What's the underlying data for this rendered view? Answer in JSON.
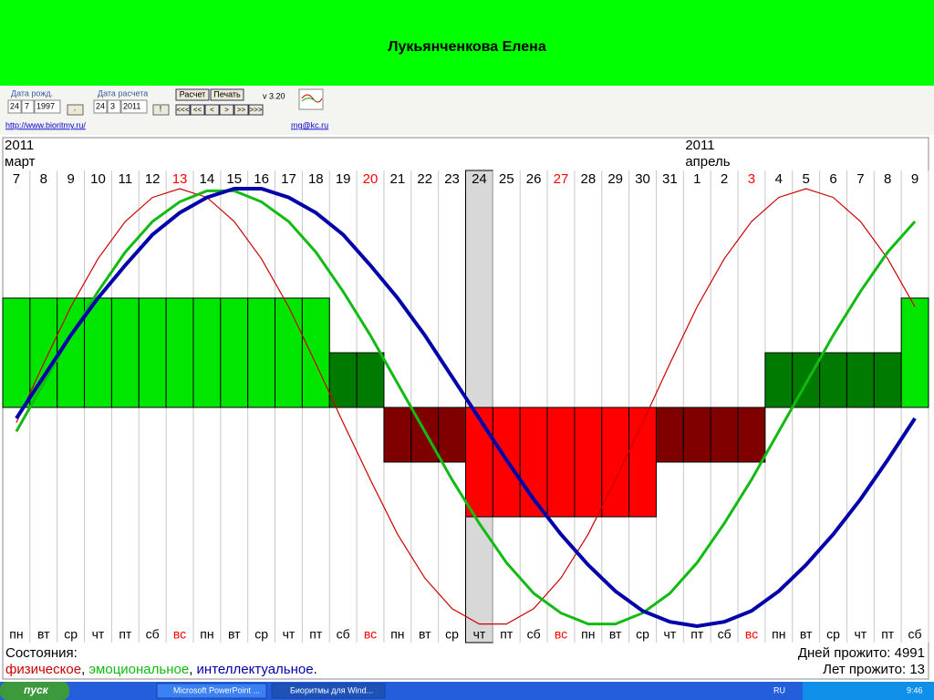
{
  "header": {
    "title": "Лукьянченкова Елена"
  },
  "controls": {
    "birth_label": "Дата рожд.",
    "birth_date": {
      "day": "24",
      "month": "7",
      "year": "1997"
    },
    "birth_button": ".",
    "calc_label": "Дата расчета",
    "calc_date": {
      "day": "24",
      "month": "3",
      "year": "2011"
    },
    "calc_button": "!",
    "buttons": [
      "Расчет",
      "Печать"
    ],
    "version": "v 3.20",
    "nav": [
      "<<<",
      "<<",
      "<",
      ">",
      ">>",
      ">>>"
    ],
    "links": [
      "http://www.bioritmy.ru/",
      "mg@kc.ru"
    ]
  },
  "chart_data": {
    "type": "line",
    "months": [
      {
        "year": "2011",
        "month": "март"
      },
      {
        "year": "2011",
        "month": "апрель"
      }
    ],
    "categories": [
      "7",
      "8",
      "9",
      "10",
      "11",
      "12",
      "13",
      "14",
      "15",
      "16",
      "17",
      "18",
      "19",
      "20",
      "21",
      "22",
      "23",
      "24",
      "25",
      "26",
      "27",
      "28",
      "29",
      "30",
      "31",
      "1",
      "2",
      "3",
      "4",
      "5",
      "6",
      "7",
      "8",
      "9"
    ],
    "weekdays": [
      "пн",
      "вт",
      "ср",
      "чт",
      "пт",
      "сб",
      "вс",
      "пн",
      "вт",
      "ср",
      "чт",
      "пт",
      "сб",
      "вс",
      "пн",
      "вт",
      "ср",
      "чт",
      "пт",
      "сб",
      "вс",
      "пн",
      "вт",
      "ср",
      "чт",
      "пт",
      "сб",
      "вс",
      "пн",
      "вт",
      "ср",
      "чт",
      "пт",
      "сб"
    ],
    "holiday_color": "#ff0000",
    "ylim": [
      -100,
      100
    ],
    "y2lim": [
      -4,
      4
    ],
    "series": [
      {
        "name": "физическое",
        "color": "#cc0000",
        "values": [
          -7,
          20,
          46,
          68,
          85,
          96,
          100,
          96,
          85,
          68,
          46,
          20,
          -7,
          -33,
          -58,
          -78,
          -92,
          -99,
          -99,
          -92,
          -78,
          -58,
          -33,
          -7,
          20,
          46,
          68,
          85,
          96,
          100,
          96,
          85,
          68,
          46
        ]
      },
      {
        "name": "эмоциональное",
        "color": "#11bb11",
        "values": [
          -11,
          11,
          33,
          53,
          71,
          85,
          94,
          99,
          99,
          94,
          85,
          71,
          53,
          33,
          11,
          -11,
          -33,
          -53,
          -71,
          -85,
          -94,
          -99,
          -99,
          -94,
          -85,
          -71,
          -53,
          -33,
          -11,
          11,
          33,
          53,
          71,
          85
        ]
      },
      {
        "name": "интеллектуальное",
        "color": "#0000aa",
        "values": [
          -5,
          14,
          33,
          50,
          65,
          79,
          89,
          96,
          100,
          100,
          96,
          89,
          79,
          65,
          50,
          33,
          14,
          -5,
          -24,
          -42,
          -58,
          -72,
          -84,
          -93,
          -98,
          -100,
          -98,
          -93,
          -84,
          -72,
          -58,
          -42,
          -24,
          -5
        ]
      }
    ],
    "states": {
      "axis": "y2",
      "values": [
        2,
        2,
        2,
        2,
        2,
        2,
        2,
        2,
        2,
        2,
        2,
        2,
        1,
        1,
        -1,
        -1,
        -1,
        -2,
        -2,
        -2,
        -2,
        -2,
        -2,
        -2,
        -1,
        -1,
        -1,
        -1,
        1,
        1,
        1,
        1,
        1,
        2
      ],
      "colors": {
        "2": "#00e600",
        "1": "#007a00",
        "-1": "#800000",
        "-2": "#ff0000"
      }
    },
    "legend_title": "Состояния:",
    "separator": ",",
    "end": ".",
    "stats": [
      "Дней прожито: 4991",
      "Лет прожито: 13"
    ]
  },
  "taskbar": {
    "start": "пуск",
    "tasks": [
      "Microsoft PowerPoint ...",
      "Биоритмы для Wind..."
    ],
    "lang": "RU",
    "clock": "9:46"
  }
}
